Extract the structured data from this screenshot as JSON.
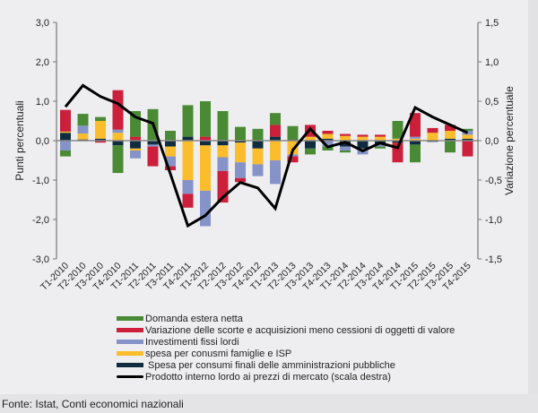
{
  "chart_data": {
    "type": "bar",
    "subtype": "stacked-bar-with-line",
    "title": "",
    "categories": [
      "T1-2010",
      "T2-2010",
      "T3-2010",
      "T4-2010",
      "T1-2011",
      "T2-2011",
      "T3-2011",
      "T4-2011",
      "T1-2012",
      "T2-2012",
      "T3-2012",
      "T4-2012",
      "T1-2013",
      "T2-2013",
      "T3-2013",
      "T4-2013",
      "T1-2014",
      "T2-2014",
      "T3-2014",
      "T4-2014",
      "T1-2015",
      "T2-2015",
      "T3-2015",
      "T4-2015"
    ],
    "ylabel_left": "Punti percentuali",
    "ylabel_right": "Variazione percentuale",
    "ylim_left": [
      -3.0,
      3.0
    ],
    "ylim_right": [
      -1.5,
      1.5
    ],
    "yticks_left": [
      "3,0",
      "2,0",
      "1,0",
      "0,0",
      "-1,0",
      "-2,0",
      "-3,0"
    ],
    "yticks_right": [
      "1,5",
      "1,0",
      "0,5",
      "0,0",
      "-0,5",
      "-1,0",
      "-1,5"
    ],
    "series": [
      {
        "key": "pa",
        "name": "Spesa per consumi finali delle amministrazioni pubbliche",
        "color": "#0f2d3f",
        "axis": "left",
        "kind": "bar",
        "values": [
          0.2,
          0.03,
          0.05,
          -0.12,
          -0.2,
          -0.1,
          -0.15,
          0.1,
          -0.12,
          -0.12,
          -0.05,
          -0.2,
          0.1,
          0.02,
          -0.2,
          0.05,
          -0.15,
          -0.2,
          -0.1,
          -0.05,
          -0.1,
          -0.03,
          0.05,
          0.05
        ]
      },
      {
        "key": "fam",
        "name": "spesa per conusmi famiglie e ISP",
        "color": "#fbbd2b",
        "axis": "left",
        "kind": "bar",
        "values": [
          0.03,
          0.15,
          0.45,
          0.2,
          -0.05,
          0.0,
          -0.25,
          -1.0,
          -1.15,
          -0.3,
          -0.5,
          -0.4,
          -0.5,
          -0.35,
          0.1,
          0.12,
          0.12,
          0.1,
          0.1,
          0.05,
          0.05,
          0.2,
          0.2,
          0.1
        ]
      },
      {
        "key": "inv",
        "name": "Investimenti fissi lordi",
        "color": "#8593c9",
        "axis": "left",
        "kind": "bar",
        "values": [
          -0.25,
          0.2,
          0.0,
          0.08,
          -0.2,
          -0.05,
          -0.25,
          -0.35,
          -0.9,
          -0.35,
          -0.4,
          -0.3,
          -0.6,
          -0.05,
          0.0,
          -0.15,
          -0.1,
          -0.15,
          -0.05,
          0.0,
          0.05,
          0.0,
          0.0,
          0.1
        ]
      },
      {
        "key": "scorte",
        "name": "Variazione delle scorte e acquisizioni meno cessioni di oggetti di valore",
        "color": "#cb1f3b",
        "axis": "left",
        "kind": "bar",
        "values": [
          0.55,
          0.0,
          -0.05,
          1.0,
          0.1,
          -0.5,
          -0.1,
          -0.35,
          0.1,
          -0.8,
          -0.1,
          0.0,
          0.3,
          -0.15,
          0.3,
          0.08,
          0.05,
          0.05,
          0.05,
          -0.5,
          0.6,
          0.12,
          0.15,
          -0.4
        ]
      },
      {
        "key": "estera",
        "name": "Domanda estera netta",
        "color": "#4a8a35",
        "axis": "left",
        "kind": "bar",
        "values": [
          -0.15,
          0.3,
          0.1,
          -0.7,
          0.65,
          0.8,
          0.25,
          0.8,
          0.9,
          0.75,
          0.35,
          0.3,
          0.3,
          0.35,
          -0.15,
          -0.1,
          -0.05,
          0.0,
          -0.05,
          0.45,
          -0.45,
          0.0,
          -0.3,
          0.05
        ]
      },
      {
        "key": "pil",
        "name": "Prodotto interno lordo ai prezzi di mercato (scala destra)",
        "color": "#000000",
        "axis": "right",
        "kind": "line",
        "values": [
          0.43,
          0.7,
          0.56,
          0.47,
          0.3,
          0.22,
          -0.42,
          -1.08,
          -0.95,
          -0.72,
          -0.53,
          -0.6,
          -0.86,
          -0.12,
          0.15,
          -0.08,
          -0.02,
          -0.13,
          -0.03,
          -0.09,
          0.42,
          0.3,
          0.2,
          0.1
        ]
      }
    ],
    "legend_position": "bottom-left",
    "grid": false
  },
  "legend": [
    {
      "label": "Domanda estera netta",
      "color": "#4a8a35",
      "kind": "bar"
    },
    {
      "label": "Variazione delle scorte e acquisizioni meno cessioni di oggetti di valore",
      "color": "#cb1f3b",
      "kind": "bar"
    },
    {
      "label": "Investimenti fissi lordi",
      "color": "#8593c9",
      "kind": "bar"
    },
    {
      "label": "spesa per conusmi famiglie e ISP",
      "color": "#fbbd2b",
      "kind": "bar"
    },
    {
      "label": " Spesa per consumi finali delle amministrazioni pubbliche",
      "color": "#0f2d3f",
      "kind": "bar"
    },
    {
      "label": "Prodotto interno lordo ai prezzi di mercato (scala destra)",
      "color": "#000000",
      "kind": "line"
    }
  ],
  "footer": {
    "source": "Fonte: Istat, Conti economici nazionali"
  }
}
